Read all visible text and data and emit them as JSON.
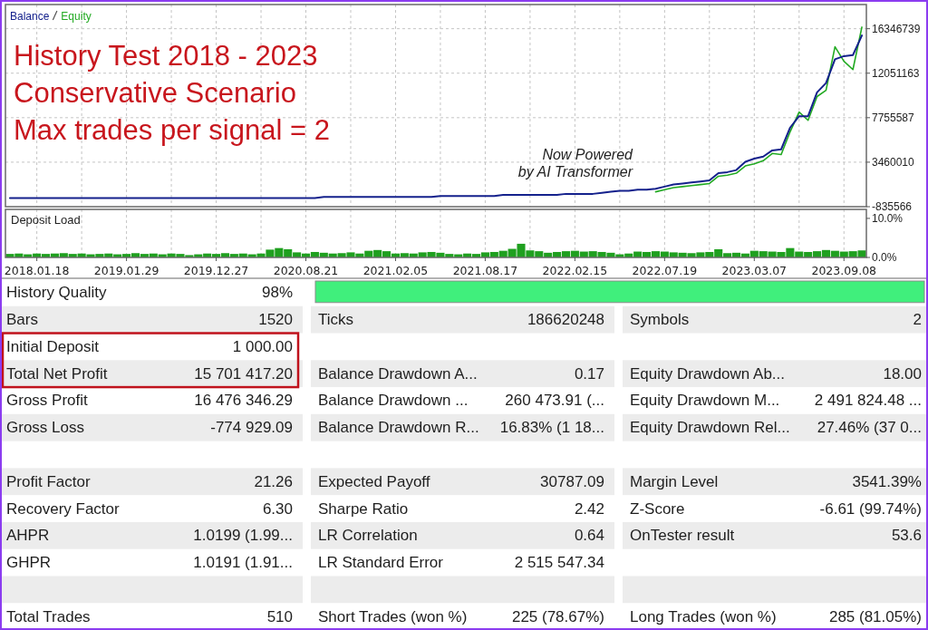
{
  "chart_data": [
    {
      "type": "line",
      "title": "History Test 2018 - 2023\nConservative Scenario\nMax trades per signal = 2",
      "annotations": [
        "Now Powered\nby AI Transformer"
      ],
      "legend": "top left",
      "tick_labels": "y",
      "grid": true,
      "categories": [
        null,
        null,
        null,
        "2018.01.18",
        null,
        null,
        null,
        null,
        null,
        null,
        null,
        null,
        null,
        "2019.01.29",
        null,
        null,
        null,
        null,
        null,
        null,
        null,
        null,
        null,
        "2019.12.27",
        null,
        null,
        null,
        null,
        null,
        null,
        null,
        null,
        null,
        "2020.08.21",
        null,
        null,
        null,
        null,
        null,
        null,
        null,
        null,
        null,
        "2021.02.05",
        null,
        null,
        null,
        null,
        null,
        null,
        null,
        null,
        null,
        "2021.08.17",
        null,
        null,
        null,
        null,
        null,
        null,
        null,
        null,
        null,
        "2022.02.15",
        null,
        null,
        null,
        null,
        null,
        null,
        null,
        null,
        null,
        "2022.07.19",
        null,
        null,
        null,
        null,
        null,
        null,
        null,
        null,
        null,
        "2023.03.07",
        null,
        null,
        null,
        null,
        null,
        null,
        null,
        null,
        null,
        "2023.09.08",
        null,
        null
      ],
      "ylim": [
        -835566,
        18680000
      ],
      "yticks": [
        -835566,
        3460010,
        7755587,
        12051163,
        16346739
      ],
      "series": [
        {
          "name": "Balance",
          "color": "#14218c",
          "values": [
            0,
            0,
            0,
            0,
            0,
            0,
            0,
            0,
            0,
            0,
            0,
            0,
            0,
            0,
            0,
            0,
            0,
            0,
            0,
            0,
            0,
            0,
            0,
            0,
            0,
            0,
            0,
            0,
            0,
            0,
            0,
            0,
            0,
            0,
            0,
            100000,
            100000,
            100000,
            100000,
            100000,
            100000,
            100000,
            100000,
            100000,
            100000,
            100000,
            100000,
            100000,
            200000,
            200000,
            200000,
            200000,
            200000,
            200000,
            200000,
            300000,
            300000,
            300000,
            300000,
            300000,
            300000,
            300000,
            400000,
            400000,
            400000,
            400000,
            500000,
            600000,
            700000,
            700000,
            800000,
            800000,
            900000,
            1100000,
            1300000,
            1400000,
            1500000,
            1600000,
            1700000,
            2400000,
            2500000,
            2700000,
            3500000,
            3800000,
            4000000,
            4600000,
            4700000,
            6800000,
            7900000,
            7900000,
            10200000,
            11100000,
            13400000,
            13700000,
            13800000,
            15700000
          ]
        },
        {
          "name": "Equity",
          "color": "#22aa22",
          "values": [
            null,
            null,
            null,
            null,
            null,
            null,
            null,
            null,
            null,
            null,
            null,
            null,
            null,
            null,
            null,
            null,
            null,
            null,
            null,
            null,
            null,
            null,
            null,
            null,
            null,
            null,
            null,
            null,
            null,
            null,
            null,
            null,
            null,
            null,
            null,
            null,
            null,
            null,
            null,
            null,
            null,
            null,
            null,
            null,
            null,
            null,
            null,
            null,
            null,
            null,
            null,
            null,
            null,
            null,
            null,
            null,
            null,
            null,
            null,
            null,
            null,
            null,
            null,
            null,
            null,
            null,
            null,
            null,
            null,
            null,
            null,
            null,
            600000,
            800000,
            1000000,
            1100000,
            1200000,
            1300000,
            1400000,
            2100000,
            2200000,
            2400000,
            3100000,
            3300000,
            3600000,
            4300000,
            4200000,
            6400000,
            8300000,
            7500000,
            9800000,
            10400000,
            14600000,
            13200000,
            12400000,
            16500000
          ]
        }
      ]
    },
    {
      "type": "bar",
      "title": "Deposit Load",
      "grid": "x",
      "color": "#1fa01f",
      "categories": [
        null,
        null,
        null,
        "2018.01.18",
        null,
        null,
        null,
        null,
        null,
        null,
        null,
        null,
        null,
        "2019.01.29",
        null,
        null,
        null,
        null,
        null,
        null,
        null,
        null,
        null,
        "2019.12.27",
        null,
        null,
        null,
        null,
        null,
        null,
        null,
        null,
        null,
        "2020.08.21",
        null,
        null,
        null,
        null,
        null,
        null,
        null,
        null,
        null,
        "2021.02.05",
        null,
        null,
        null,
        null,
        null,
        null,
        null,
        null,
        null,
        "2021.08.17",
        null,
        null,
        null,
        null,
        null,
        null,
        null,
        null,
        null,
        "2022.02.15",
        null,
        null,
        null,
        null,
        null,
        null,
        null,
        null,
        null,
        "2022.07.19",
        null,
        null,
        null,
        null,
        null,
        null,
        null,
        null,
        null,
        "2023.03.07",
        null,
        null,
        null,
        null,
        null,
        null,
        null,
        null,
        null,
        "2023.09.08",
        null,
        null
      ],
      "ylim": [
        0,
        12.3
      ],
      "yticks": [
        {
          "value": 0,
          "label": "0.0%"
        },
        {
          "value": 10,
          "label": "10.0%"
        }
      ],
      "values": [
        0.9,
        1.0,
        0.8,
        1.0,
        0.9,
        1.0,
        1.1,
        0.9,
        1.0,
        0.8,
        0.9,
        1.0,
        0.8,
        0.9,
        1.1,
        0.9,
        1.0,
        0.8,
        1.0,
        0.9,
        0.6,
        0.8,
        1.0,
        0.9,
        1.1,
        0.9,
        1.0,
        0.8,
        1.0,
        2.0,
        2.4,
        2.1,
        1.3,
        1.0,
        1.4,
        1.2,
        1.0,
        1.1,
        1.3,
        1.0,
        1.7,
        1.9,
        1.6,
        1.0,
        1.1,
        1.0,
        1.3,
        1.4,
        1.2,
        0.9,
        0.8,
        1.0,
        0.9,
        1.3,
        1.4,
        1.7,
        2.2,
        3.5,
        1.8,
        1.6,
        1.2,
        1.4,
        1.6,
        1.7,
        1.5,
        1.6,
        1.4,
        1.2,
        0.8,
        1.0,
        1.5,
        1.4,
        1.6,
        1.5,
        1.3,
        1.2,
        1.1,
        1.3,
        1.4,
        2.1,
        1.1,
        1.2,
        1.0,
        1.7,
        1.6,
        1.5,
        1.4,
        2.4,
        1.5,
        1.4,
        1.6,
        1.9,
        1.7,
        1.5,
        1.6,
        1.8
      ]
    },
    {
      "type": "other",
      "cell_labels": [
        [
          "History Quality",
          "98%",
          null,
          null,
          null,
          null
        ],
        [
          "Bars",
          "1520",
          "Ticks",
          "186620248",
          "Symbols",
          "2"
        ],
        [
          "Initial Deposit",
          "1 000.00",
          null,
          null,
          null,
          null
        ],
        [
          "Total Net Profit",
          "15 701 417.20",
          "Balance Drawdown A...",
          "0.17",
          "Equity Drawdown Ab...",
          "18.00"
        ],
        [
          "Gross Profit",
          "16 476 346.29",
          "Balance Drawdown ...",
          "260 473.91 (...",
          "Equity Drawdown M...",
          "2 491 824.48 ..."
        ],
        [
          "Gross Loss",
          "-774 929.09",
          "Balance Drawdown R...",
          "16.83% (1 18...",
          "Equity Drawdown Rel...",
          "27.46% (37 0..."
        ],
        [
          null,
          null,
          null,
          null,
          null,
          null
        ],
        [
          "Profit Factor",
          "21.26",
          "Expected Payoff",
          "30787.09",
          "Margin Level",
          "3541.39%"
        ],
        [
          "Recovery Factor",
          "6.30",
          "Sharpe Ratio",
          "2.42",
          "Z-Score",
          "-6.61 (99.74%)"
        ],
        [
          "AHPR",
          "1.0199 (1.99...",
          "LR Correlation",
          "0.64",
          "OnTester result",
          "53.6"
        ],
        [
          "GHPR",
          "1.0191 (1.91...",
          "LR Standard Error",
          "2 515 547.34",
          null,
          null
        ],
        [
          null,
          null,
          null,
          null,
          null,
          null
        ],
        [
          "Total Trades",
          "510",
          "Short Trades (won %)",
          "225 (78.67%)",
          "Long Trades (won %)",
          "285 (81.05%)"
        ]
      ]
    }
  ]
}
